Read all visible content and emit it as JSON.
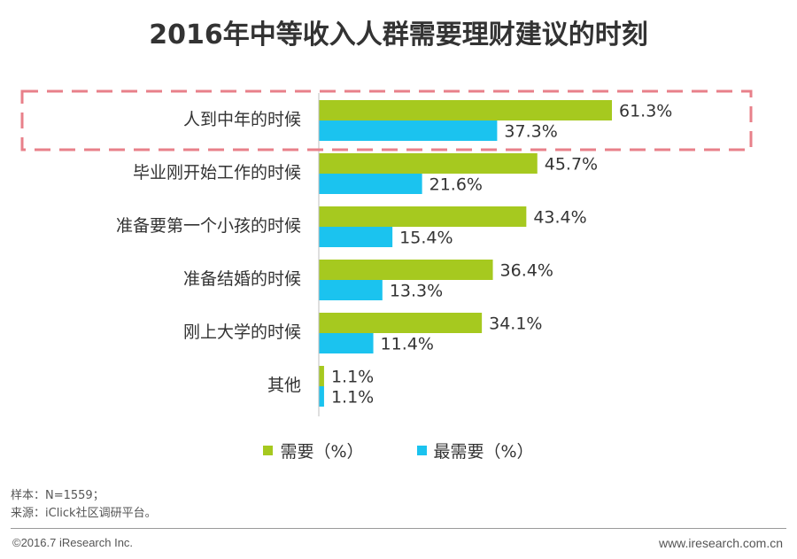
{
  "chart_data": {
    "type": "bar",
    "orientation": "horizontal",
    "title": "2016年中等收入人群需要理财建议的时刻",
    "categories": [
      "人到中年的时候",
      "毕业刚开始工作的时候",
      "准备要第一个小孩的时候",
      "准备结婚的时候",
      "刚上大学的时候",
      "其他"
    ],
    "series": [
      {
        "name": "需要（%）",
        "color": "#a6c91f",
        "values": [
          61.3,
          45.7,
          43.4,
          36.4,
          34.1,
          1.1
        ],
        "labels": [
          "61.3%",
          "45.7%",
          "43.4%",
          "36.4%",
          "34.1%",
          "1.1%"
        ]
      },
      {
        "name": "最需要（%）",
        "color": "#1bc3ef",
        "values": [
          37.3,
          21.6,
          15.4,
          13.3,
          11.4,
          1.1
        ],
        "labels": [
          "37.3%",
          "21.6%",
          "15.4%",
          "13.3%",
          "11.4%",
          "1.1%"
        ]
      }
    ],
    "xlim": [
      0,
      70
    ],
    "highlight_category": "人到中年的时候",
    "highlight_color": "#e8808a",
    "axis_color": "#bfbfbf"
  },
  "footer": {
    "sample": "样本：N=1559；",
    "source": "来源：iClick社区调研平台。",
    "copyright": "©2016.7 iResearch Inc.",
    "website": "www.iresearch.com.cn"
  }
}
